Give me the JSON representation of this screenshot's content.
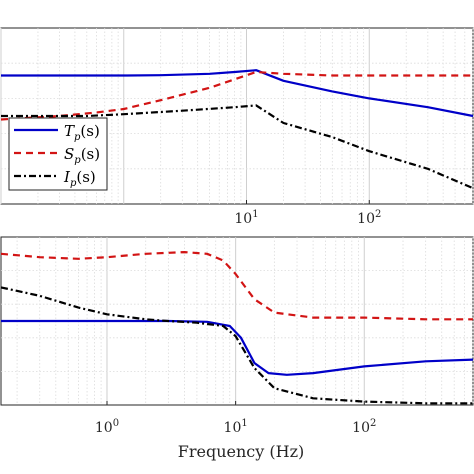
{
  "chart_data": [
    {
      "type": "line",
      "xscale": "log",
      "xlim": [
        0.1,
        700
      ],
      "ylim": [
        0,
        1
      ],
      "grid": true,
      "x_tick_labels": [
        {
          "base": "10",
          "exp": "1",
          "value": 10
        },
        {
          "base": "10",
          "exp": "2",
          "value": 100
        }
      ],
      "legend_position": "left",
      "legend": [
        {
          "label": "T",
          "sub": "p",
          "arg": "(s)"
        },
        {
          "label": "S",
          "sub": "p",
          "arg": "(s)"
        },
        {
          "label": "I",
          "sub": "p",
          "arg": "(s)"
        }
      ],
      "series": [
        {
          "name": "Tp(s)",
          "color": "#0000c8",
          "dash": "solid",
          "x": [
            0.1,
            0.5,
            1,
            2,
            5,
            8,
            12,
            20,
            50,
            100,
            300,
            700
          ],
          "y": [
            0.73,
            0.73,
            0.73,
            0.732,
            0.74,
            0.75,
            0.76,
            0.7,
            0.64,
            0.6,
            0.55,
            0.5
          ]
        },
        {
          "name": "Sp(s)",
          "color": "#d21414",
          "dash": "dashed",
          "x": [
            0.1,
            0.3,
            0.6,
            1,
            2,
            5,
            12,
            20,
            50,
            100,
            300,
            700
          ],
          "y": [
            0.48,
            0.5,
            0.52,
            0.54,
            0.59,
            0.66,
            0.75,
            0.74,
            0.73,
            0.73,
            0.73,
            0.73
          ]
        },
        {
          "name": "Ip(s)",
          "color": "#000000",
          "dash": "dashdot",
          "x": [
            0.1,
            0.5,
            1,
            3,
            8,
            12,
            20,
            50,
            100,
            300,
            700
          ],
          "y": [
            0.5,
            0.5,
            0.51,
            0.53,
            0.55,
            0.56,
            0.46,
            0.38,
            0.3,
            0.2,
            0.09
          ]
        }
      ]
    },
    {
      "type": "line",
      "xscale": "log",
      "xlim": [
        0.15,
        700
      ],
      "ylim": [
        0,
        1
      ],
      "grid": true,
      "xlabel": "Frequency (Hz)",
      "x_tick_labels": [
        {
          "base": "10",
          "exp": "0",
          "value": 1
        },
        {
          "base": "10",
          "exp": "1",
          "value": 10
        },
        {
          "base": "10",
          "exp": "2",
          "value": 100
        }
      ],
      "series": [
        {
          "name": "Tp(s)",
          "color": "#0000c8",
          "dash": "solid",
          "x": [
            0.15,
            0.5,
            1,
            3,
            6,
            9,
            11,
            14,
            18,
            25,
            40,
            100,
            300,
            700
          ],
          "y": [
            0.5,
            0.5,
            0.5,
            0.5,
            0.495,
            0.47,
            0.4,
            0.25,
            0.19,
            0.18,
            0.19,
            0.23,
            0.26,
            0.27
          ]
        },
        {
          "name": "Sp(s)",
          "color": "#d21414",
          "dash": "dashed",
          "x": [
            0.15,
            0.3,
            0.6,
            1,
            2,
            4,
            6,
            8,
            10,
            14,
            20,
            40,
            100,
            300,
            700
          ],
          "y": [
            0.9,
            0.88,
            0.87,
            0.88,
            0.9,
            0.91,
            0.9,
            0.86,
            0.78,
            0.63,
            0.55,
            0.52,
            0.52,
            0.51,
            0.51
          ]
        },
        {
          "name": "Ip(s)",
          "color": "#000000",
          "dash": "dashdot",
          "x": [
            0.15,
            0.3,
            0.6,
            1,
            2,
            3,
            5,
            8,
            10,
            14,
            20,
            40,
            100,
            300,
            700
          ],
          "y": [
            0.7,
            0.65,
            0.58,
            0.54,
            0.51,
            0.5,
            0.49,
            0.47,
            0.41,
            0.22,
            0.1,
            0.04,
            0.02,
            0.01,
            0.01
          ]
        }
      ]
    }
  ]
}
